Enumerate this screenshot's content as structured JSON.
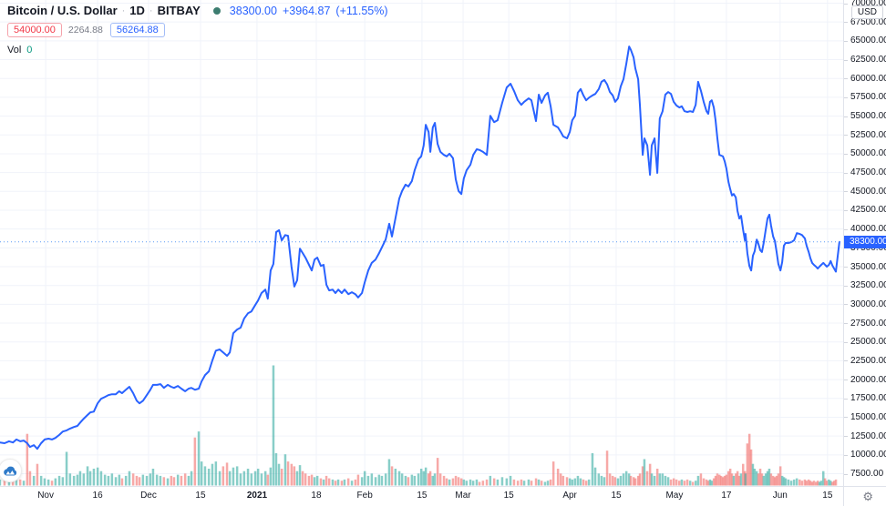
{
  "header": {
    "symbol_title": "Bitcoin / U.S. Dollar",
    "separator": "·",
    "interval": "1D",
    "exchange": "BITBAY",
    "market_dot_color": "#3d7d70",
    "last_price": "38300.00",
    "change_abs": "+3964.87",
    "change_pct": "(+11.55%)",
    "quote_color": "#2962ff",
    "levels": {
      "sell_price": "54000.00",
      "middle_value": "2264.88",
      "buy_price": "56264.88"
    },
    "volume_label": "Vol",
    "volume_value": "0"
  },
  "price_axis": {
    "currency_button": "USD",
    "min": 7500,
    "max": 70000,
    "step": 2500,
    "decimals": 2,
    "last_price_tag": {
      "text": "38300.00",
      "bg": "#2962ff"
    }
  },
  "time_axis": {
    "gear_icon": "⚙",
    "ticks": [
      {
        "label": "Nov",
        "d": 13.1
      },
      {
        "label": "16",
        "d": 28.0
      },
      {
        "label": "Dec",
        "d": 42.6
      },
      {
        "label": "15",
        "d": 57.5
      },
      {
        "label": "2021",
        "d": 73.7,
        "year": true
      },
      {
        "label": "18",
        "d": 90.7
      },
      {
        "label": "Feb",
        "d": 104.6
      },
      {
        "label": "15",
        "d": 121.0
      },
      {
        "label": "Mar",
        "d": 132.8
      },
      {
        "label": "15",
        "d": 145.9
      },
      {
        "label": "Apr",
        "d": 163.4
      },
      {
        "label": "15",
        "d": 176.7
      },
      {
        "label": "May",
        "d": 193.4
      },
      {
        "label": "17",
        "d": 208.3
      },
      {
        "label": "Jun",
        "d": 223.7
      },
      {
        "label": "15",
        "d": 237.3
      }
    ]
  },
  "chart_data": {
    "type": "line",
    "title": "Bitcoin / U.S. Dollar · 1D · BITBAY",
    "x_unit": "days since first visible bar (late Oct 2020 → mid Jun 2021)",
    "x_range": [
      0,
      241
    ],
    "ylim": [
      7500,
      70000
    ],
    "grid": true,
    "legend_position": "top-left",
    "line_color": "#2962ff",
    "current_price": 38300.0,
    "current_price_line": "dotted",
    "volume_up_color": "rgba(38,166,154,0.55)",
    "volume_down_color": "rgba(239,83,80,0.5)",
    "volume_unit": "percent of max visible volume",
    "points_format": [
      "day",
      "price_usd",
      "volume_pct"
    ],
    "points": [
      [
        0,
        11650,
        5
      ],
      [
        1.3,
        11550,
        7
      ],
      [
        2.6,
        11800,
        4
      ],
      [
        3.7,
        11650,
        6
      ],
      [
        4.7,
        12050,
        9
      ],
      [
        5.8,
        11800,
        5
      ],
      [
        6.8,
        11900,
        4
      ],
      [
        7.8,
        11550,
        43
      ],
      [
        8.6,
        11050,
        12
      ],
      [
        9.7,
        11300,
        8
      ],
      [
        10.7,
        10800,
        18
      ],
      [
        11.8,
        11550,
        8
      ],
      [
        12.8,
        12050,
        6
      ],
      [
        13.9,
        12150,
        5
      ],
      [
        14.9,
        12050,
        4
      ],
      [
        15.9,
        12250,
        6
      ],
      [
        17,
        12650,
        8
      ],
      [
        18,
        13100,
        7
      ],
      [
        19.1,
        13250,
        28
      ],
      [
        20.1,
        13500,
        10
      ],
      [
        21.2,
        13700,
        8
      ],
      [
        22.2,
        13850,
        9
      ],
      [
        23,
        14300,
        12
      ],
      [
        24,
        14800,
        10
      ],
      [
        25.1,
        15300,
        16
      ],
      [
        25.9,
        15650,
        12
      ],
      [
        26.9,
        15750,
        14
      ],
      [
        28,
        16850,
        15
      ],
      [
        29,
        17450,
        12
      ],
      [
        30.1,
        17700,
        9
      ],
      [
        31.1,
        17950,
        8
      ],
      [
        32.1,
        18050,
        10
      ],
      [
        33.2,
        18050,
        7
      ],
      [
        34.2,
        18450,
        9
      ],
      [
        35,
        18200,
        6
      ],
      [
        36.1,
        18650,
        8
      ],
      [
        37.1,
        19050,
        12
      ],
      [
        38.2,
        18200,
        10
      ],
      [
        39.2,
        17200,
        8
      ],
      [
        40,
        16850,
        7
      ],
      [
        41,
        17200,
        9
      ],
      [
        42.1,
        17950,
        8
      ],
      [
        43.1,
        18650,
        10
      ],
      [
        43.9,
        19300,
        14
      ],
      [
        45,
        19300,
        9
      ],
      [
        46,
        19400,
        8
      ],
      [
        47,
        18900,
        7
      ],
      [
        48.1,
        19300,
        6
      ],
      [
        49.1,
        19050,
        8
      ],
      [
        49.9,
        18900,
        7
      ],
      [
        51,
        19150,
        9
      ],
      [
        52,
        18800,
        8
      ],
      [
        53.1,
        18450,
        10
      ],
      [
        54.1,
        18800,
        8
      ],
      [
        54.9,
        18900,
        12
      ],
      [
        55.9,
        18650,
        40
      ],
      [
        57,
        18800,
        45
      ],
      [
        57.8,
        19750,
        20
      ],
      [
        58.8,
        20600,
        16
      ],
      [
        59.9,
        21100,
        14
      ],
      [
        60.9,
        22550,
        18
      ],
      [
        61.9,
        23850,
        20
      ],
      [
        63,
        24000,
        12
      ],
      [
        64,
        23600,
        16
      ],
      [
        65.1,
        23150,
        19
      ],
      [
        65.9,
        23600,
        12
      ],
      [
        66.9,
        26150,
        15
      ],
      [
        68,
        26650,
        16
      ],
      [
        69,
        26900,
        10
      ],
      [
        70,
        28100,
        12
      ],
      [
        71.1,
        28800,
        14
      ],
      [
        72.1,
        29050,
        10
      ],
      [
        73.2,
        29900,
        12
      ],
      [
        74,
        30500,
        14
      ],
      [
        75,
        31500,
        10
      ],
      [
        76.1,
        31950,
        12
      ],
      [
        76.8,
        30750,
        9
      ],
      [
        77.6,
        34500,
        15
      ],
      [
        78.4,
        35350,
        100
      ],
      [
        79.2,
        39600,
        27
      ],
      [
        80,
        39850,
        18
      ],
      [
        80.8,
        38500,
        14
      ],
      [
        81.8,
        39200,
        26
      ],
      [
        82.6,
        39100,
        20
      ],
      [
        83.6,
        35000,
        18
      ],
      [
        84.4,
        32350,
        16
      ],
      [
        85.2,
        33200,
        12
      ],
      [
        86,
        37400,
        17
      ],
      [
        86.8,
        36800,
        12
      ],
      [
        87.6,
        36200,
        10
      ],
      [
        88.6,
        35250,
        8
      ],
      [
        89.4,
        34500,
        9
      ],
      [
        90.2,
        35950,
        7
      ],
      [
        91,
        36200,
        8
      ],
      [
        92,
        35100,
        6
      ],
      [
        92.8,
        35250,
        5
      ],
      [
        93.6,
        32600,
        8
      ],
      [
        94.4,
        31850,
        6
      ],
      [
        95.4,
        31950,
        5
      ],
      [
        96.2,
        31500,
        4
      ],
      [
        97,
        31950,
        5
      ],
      [
        98,
        31500,
        4
      ],
      [
        98.8,
        31950,
        5
      ],
      [
        99.9,
        31350,
        6
      ],
      [
        100.9,
        31600,
        4
      ],
      [
        101.9,
        31350,
        5
      ],
      [
        102.7,
        30900,
        9
      ],
      [
        103.8,
        31500,
        7
      ],
      [
        104.6,
        32950,
        12
      ],
      [
        105.6,
        34500,
        8
      ],
      [
        106.6,
        35500,
        10
      ],
      [
        107.7,
        35950,
        7
      ],
      [
        108.7,
        36800,
        9
      ],
      [
        109.5,
        37550,
        8
      ],
      [
        110.6,
        38600,
        10
      ],
      [
        111.6,
        40700,
        22
      ],
      [
        112.4,
        39000,
        16
      ],
      [
        113.4,
        41400,
        14
      ],
      [
        114.5,
        44050,
        12
      ],
      [
        115.3,
        45050,
        10
      ],
      [
        116.3,
        45900,
        8
      ],
      [
        117.1,
        45650,
        7
      ],
      [
        118.1,
        46350,
        9
      ],
      [
        118.9,
        47800,
        8
      ],
      [
        120,
        49250,
        10
      ],
      [
        120.8,
        49650,
        14
      ],
      [
        121.5,
        51100,
        12
      ],
      [
        122.1,
        53850,
        15
      ],
      [
        122.9,
        52900,
        10
      ],
      [
        123.4,
        50250,
        12
      ],
      [
        124.1,
        53500,
        8
      ],
      [
        124.7,
        54100,
        10
      ],
      [
        125.5,
        51300,
        23
      ],
      [
        126.3,
        50250,
        10
      ],
      [
        127.3,
        49850,
        8
      ],
      [
        128.1,
        49650,
        6
      ],
      [
        128.9,
        50000,
        5
      ],
      [
        129.9,
        49400,
        6
      ],
      [
        130.7,
        46600,
        8
      ],
      [
        131.5,
        45050,
        7
      ],
      [
        132.3,
        44650,
        6
      ],
      [
        133,
        46700,
        5
      ],
      [
        133.8,
        47800,
        4
      ],
      [
        134.9,
        48550,
        5
      ],
      [
        135.7,
        49850,
        4
      ],
      [
        136.7,
        50600,
        5
      ],
      [
        137.5,
        50500,
        3
      ],
      [
        138.5,
        50250,
        4
      ],
      [
        139.6,
        49850,
        5
      ],
      [
        140.6,
        55050,
        8
      ],
      [
        141.7,
        54200,
        6
      ],
      [
        142.7,
        54450,
        5
      ],
      [
        144,
        56750,
        7
      ],
      [
        145.3,
        58800,
        6
      ],
      [
        146.4,
        59300,
        8
      ],
      [
        147.4,
        58350,
        5
      ],
      [
        148.5,
        57100,
        4
      ],
      [
        149.5,
        56500,
        5
      ],
      [
        150.3,
        56900,
        4
      ],
      [
        151.6,
        57350,
        5
      ],
      [
        152.4,
        57100,
        4
      ],
      [
        153.7,
        54350,
        6
      ],
      [
        154.5,
        57850,
        5
      ],
      [
        155.3,
        56750,
        4
      ],
      [
        156.3,
        57750,
        3
      ],
      [
        157.1,
        58100,
        4
      ],
      [
        157.9,
        56300,
        5
      ],
      [
        158.7,
        53850,
        20
      ],
      [
        160,
        53500,
        14
      ],
      [
        160.8,
        52900,
        10
      ],
      [
        161.5,
        52300,
        8
      ],
      [
        162.6,
        52050,
        7
      ],
      [
        163.4,
        52900,
        6
      ],
      [
        164.1,
        54450,
        5
      ],
      [
        164.9,
        55050,
        6
      ],
      [
        165.7,
        58100,
        8
      ],
      [
        166.5,
        58600,
        6
      ],
      [
        167.3,
        57750,
        5
      ],
      [
        168.1,
        57100,
        4
      ],
      [
        168.9,
        57450,
        5
      ],
      [
        169.9,
        57750,
        27
      ],
      [
        170.7,
        57950,
        15
      ],
      [
        171.7,
        58600,
        10
      ],
      [
        172.5,
        59550,
        8
      ],
      [
        173.3,
        59800,
        7
      ],
      [
        174.1,
        59200,
        29
      ],
      [
        174.9,
        58200,
        10
      ],
      [
        175.7,
        57750,
        8
      ],
      [
        176.4,
        56900,
        7
      ],
      [
        177.2,
        57350,
        6
      ],
      [
        178,
        58950,
        8
      ],
      [
        178.8,
        59900,
        10
      ],
      [
        179.6,
        61950,
        12
      ],
      [
        180.4,
        64250,
        10
      ],
      [
        180.9,
        63800,
        8
      ],
      [
        181.7,
        62800,
        7
      ],
      [
        182.2,
        61350,
        6
      ],
      [
        183,
        59900,
        8
      ],
      [
        183.5,
        56500,
        10
      ],
      [
        184.3,
        49850,
        16
      ],
      [
        184.8,
        52050,
        22
      ],
      [
        185.6,
        51100,
        12
      ],
      [
        186.4,
        47200,
        18
      ],
      [
        186.9,
        51100,
        10
      ],
      [
        187.7,
        52050,
        8
      ],
      [
        188.5,
        47450,
        14
      ],
      [
        189.2,
        54700,
        10
      ],
      [
        190,
        55650,
        10
      ],
      [
        190.8,
        57850,
        8
      ],
      [
        191.6,
        58200,
        7
      ],
      [
        192.4,
        57950,
        5
      ],
      [
        193.2,
        56900,
        6
      ],
      [
        194,
        56400,
        5
      ],
      [
        194.8,
        56150,
        4
      ],
      [
        195.5,
        56300,
        5
      ],
      [
        196.3,
        55650,
        4
      ],
      [
        197.1,
        55550,
        5
      ],
      [
        197.9,
        55650,
        4
      ],
      [
        198.7,
        55550,
        3
      ],
      [
        199.5,
        56500,
        4
      ],
      [
        200.2,
        59550,
        8
      ],
      [
        201,
        58350,
        10
      ],
      [
        201.8,
        56900,
        6
      ],
      [
        202.6,
        55650,
        5
      ],
      [
        203.1,
        55300,
        4
      ],
      [
        203.6,
        56900,
        5
      ],
      [
        204.1,
        57100,
        4
      ],
      [
        204.7,
        56150,
        6
      ],
      [
        205.2,
        54450,
        8
      ],
      [
        205.7,
        52050,
        10
      ],
      [
        206.3,
        49850,
        9
      ],
      [
        206.8,
        49750,
        8
      ],
      [
        207.3,
        49650,
        7
      ],
      [
        207.8,
        49000,
        8
      ],
      [
        208.3,
        48050,
        9
      ],
      [
        208.9,
        46250,
        12
      ],
      [
        209.4,
        45300,
        14
      ],
      [
        209.9,
        44450,
        10
      ],
      [
        210.4,
        44650,
        8
      ],
      [
        211,
        44200,
        10
      ],
      [
        211.5,
        42400,
        12
      ],
      [
        212,
        41400,
        8
      ],
      [
        212.5,
        41750,
        10
      ],
      [
        213.1,
        39850,
        18
      ],
      [
        213.6,
        38500,
        12
      ],
      [
        213.8,
        39350,
        10
      ],
      [
        214.3,
        36800,
        35
      ],
      [
        214.9,
        35100,
        43
      ],
      [
        215.4,
        34500,
        30
      ],
      [
        215.9,
        36450,
        18
      ],
      [
        216.4,
        37050,
        14
      ],
      [
        217,
        38600,
        12
      ],
      [
        217.5,
        38000,
        10
      ],
      [
        218,
        37200,
        14
      ],
      [
        218.5,
        36950,
        10
      ],
      [
        219,
        38150,
        8
      ],
      [
        219.6,
        39950,
        10
      ],
      [
        220.1,
        41400,
        12
      ],
      [
        220.6,
        41900,
        14
      ],
      [
        221.1,
        40450,
        10
      ],
      [
        221.7,
        39000,
        8
      ],
      [
        222.2,
        38400,
        7
      ],
      [
        222.7,
        36950,
        8
      ],
      [
        223.2,
        35350,
        10
      ],
      [
        223.8,
        34500,
        16
      ],
      [
        224.3,
        35600,
        8
      ],
      [
        224.8,
        37800,
        7
      ],
      [
        225.3,
        38150,
        6
      ],
      [
        226.1,
        38150,
        5
      ],
      [
        226.9,
        38250,
        4
      ],
      [
        227.7,
        38500,
        5
      ],
      [
        228.5,
        39450,
        6
      ],
      [
        229.3,
        39350,
        5
      ],
      [
        230,
        39200,
        4
      ],
      [
        230.8,
        38750,
        5
      ],
      [
        231.3,
        37800,
        4
      ],
      [
        231.9,
        36950,
        5
      ],
      [
        232.4,
        36100,
        4
      ],
      [
        232.9,
        35500,
        3
      ],
      [
        233.4,
        35250,
        4
      ],
      [
        234,
        35000,
        3
      ],
      [
        234.5,
        34750,
        4
      ],
      [
        235,
        35000,
        3
      ],
      [
        235.5,
        35250,
        4
      ],
      [
        236.1,
        35500,
        12
      ],
      [
        236.6,
        35250,
        6
      ],
      [
        237.1,
        35000,
        4
      ],
      [
        237.7,
        35250,
        5
      ],
      [
        238.2,
        35750,
        4
      ],
      [
        238.7,
        35150,
        3
      ],
      [
        239.2,
        34750,
        4
      ],
      [
        239.7,
        34335,
        5
      ],
      [
        240.7,
        38300,
        0
      ]
    ]
  },
  "colors": {
    "grid": "#f0f3fa",
    "axis_border": "#e0e3eb",
    "axis_text": "#131722",
    "dotted_price_line": "#5b9cf6",
    "logo_blue": "#2e7ac9"
  }
}
